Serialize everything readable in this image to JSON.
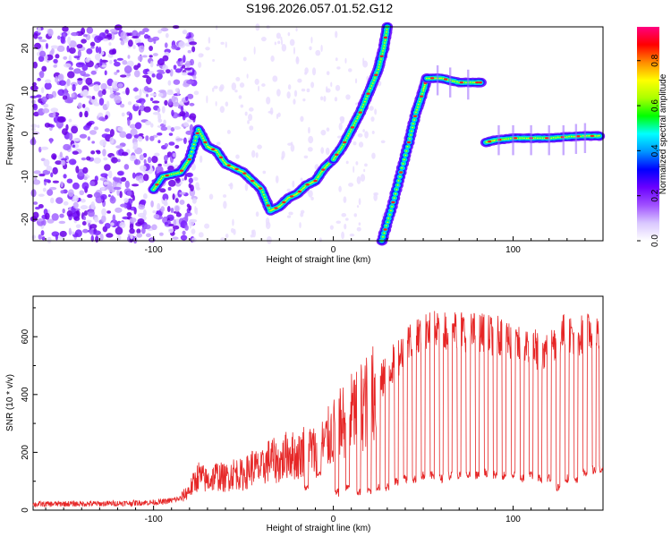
{
  "title": "S196.2026.057.01.52.G12",
  "colors": {
    "snr_line": "#e62626",
    "axis": "#000000",
    "colorbar": [
      "#ffffff",
      "#d9c7ff",
      "#a050ff",
      "#6a00ff",
      "#0000ff",
      "#0096ff",
      "#00ffff",
      "#00ff00",
      "#aaff00",
      "#ffff00",
      "#ff8c00",
      "#ff0000",
      "#ff0080"
    ]
  },
  "chart_data": [
    {
      "type": "heatmap",
      "xlabel": "Height of straight line (km)",
      "ylabel": "Frequency (Hz)",
      "xlim": [
        -167,
        150
      ],
      "ylim": [
        -25,
        25
      ],
      "xticks": [
        "-100",
        "0",
        "100"
      ],
      "yticks": [
        "-20",
        "-10",
        "0",
        "10",
        "20"
      ],
      "colorbar": {
        "label": "Normalized spectral amplitude",
        "range": [
          0,
          0.95
        ],
        "ticks": [
          "0.0",
          "0.2",
          "0.4",
          "0.6",
          "0.8"
        ]
      },
      "tracks": [
        {
          "segment": "noisy track",
          "points": [
            [
              -100,
              -13
            ],
            [
              -95,
              -10
            ],
            [
              -85,
              -9
            ],
            [
              -80,
              -6
            ],
            [
              -75,
              1
            ],
            [
              -70,
              -3
            ],
            [
              -65,
              -4
            ],
            [
              -60,
              -7
            ],
            [
              -55,
              -8
            ],
            [
              -50,
              -9
            ],
            [
              -45,
              -11
            ],
            [
              -40,
              -13
            ],
            [
              -35,
              -18
            ],
            [
              -30,
              -17
            ],
            [
              -25,
              -15
            ],
            [
              -20,
              -14
            ],
            [
              -15,
              -12
            ],
            [
              -10,
              -11
            ],
            [
              -5,
              -8
            ],
            [
              0,
              -6
            ]
          ]
        },
        {
          "segment": "rising ridge 1",
          "points": [
            [
              0,
              -6
            ],
            [
              5,
              -3
            ],
            [
              10,
              1
            ],
            [
              15,
              5
            ],
            [
              20,
              10
            ],
            [
              25,
              15
            ],
            [
              28,
              20
            ],
            [
              30,
              25
            ]
          ]
        },
        {
          "segment": "rising ridge 2",
          "points": [
            [
              27,
              -25
            ],
            [
              32,
              -18
            ],
            [
              37,
              -10
            ],
            [
              42,
              -2
            ],
            [
              46,
              5
            ],
            [
              50,
              10
            ],
            [
              52,
              13
            ]
          ]
        },
        {
          "segment": "plateau",
          "points": [
            [
              52,
              13
            ],
            [
              60,
              13
            ],
            [
              70,
              12
            ],
            [
              80,
              12
            ],
            [
              82,
              12
            ]
          ]
        },
        {
          "segment": "low branch",
          "points": [
            [
              85,
              -2
            ],
            [
              90,
              -1.5
            ],
            [
              100,
              -1
            ],
            [
              110,
              -1
            ],
            [
              120,
              -1
            ],
            [
              130,
              -0.7
            ],
            [
              140,
              -0.5
            ],
            [
              148,
              -0.5
            ]
          ]
        }
      ]
    },
    {
      "type": "line",
      "xlabel": "Height of straight line (km)",
      "ylabel": "SNR (10 * v/v)",
      "xlim": [
        -167,
        150
      ],
      "ylim": [
        0,
        740
      ],
      "xticks": [
        "-100",
        "0",
        "100"
      ],
      "yticks": [
        "0",
        "200",
        "400",
        "600"
      ],
      "series": [
        {
          "values": [
            [
              -167,
              20
            ],
            [
              -150,
              22
            ],
            [
              -130,
              22
            ],
            [
              -110,
              25
            ],
            [
              -95,
              28
            ],
            [
              -85,
              40
            ],
            [
              -80,
              70
            ],
            [
              -75,
              120
            ],
            [
              -70,
              100
            ],
            [
              -65,
              120
            ],
            [
              -60,
              110
            ],
            [
              -55,
              130
            ],
            [
              -50,
              120
            ],
            [
              -45,
              150
            ],
            [
              -40,
              140
            ],
            [
              -35,
              180
            ],
            [
              -30,
              160
            ],
            [
              -25,
              200
            ],
            [
              -20,
              180
            ],
            [
              -15,
              220
            ],
            [
              -10,
              200
            ],
            [
              -5,
              230
            ],
            [
              0,
              270
            ],
            [
              5,
              300
            ],
            [
              10,
              330
            ],
            [
              15,
              360
            ],
            [
              20,
              380
            ],
            [
              25,
              420
            ],
            [
              30,
              480
            ],
            [
              35,
              520
            ],
            [
              40,
              570
            ],
            [
              45,
              600
            ],
            [
              50,
              610
            ],
            [
              55,
              620
            ],
            [
              60,
              630
            ],
            [
              65,
              620
            ],
            [
              70,
              630
            ],
            [
              75,
              610
            ],
            [
              80,
              620
            ],
            [
              85,
              610
            ],
            [
              90,
              600
            ],
            [
              95,
              610
            ],
            [
              100,
              580
            ],
            [
              105,
              560
            ],
            [
              110,
              580
            ],
            [
              115,
              540
            ],
            [
              120,
              560
            ],
            [
              125,
              600
            ],
            [
              130,
              620
            ],
            [
              135,
              600
            ],
            [
              140,
              610
            ],
            [
              145,
              620
            ],
            [
              150,
              600
            ]
          ],
          "dips": [
            [
              -15,
              80
            ],
            [
              -8,
              120
            ],
            [
              2,
              60
            ],
            [
              8,
              80
            ],
            [
              14,
              60
            ],
            [
              20,
              70
            ],
            [
              25,
              80
            ],
            [
              30,
              80
            ],
            [
              35,
              100
            ],
            [
              40,
              110
            ],
            [
              45,
              110
            ],
            [
              50,
              120
            ],
            [
              55,
              120
            ],
            [
              60,
              110
            ],
            [
              65,
              120
            ],
            [
              70,
              120
            ],
            [
              75,
              120
            ],
            [
              80,
              120
            ],
            [
              85,
              130
            ],
            [
              90,
              120
            ],
            [
              95,
              120
            ],
            [
              100,
              120
            ],
            [
              105,
              110
            ],
            [
              110,
              120
            ],
            [
              115,
              110
            ],
            [
              120,
              110
            ],
            [
              125,
              80
            ],
            [
              130,
              110
            ],
            [
              135,
              100
            ],
            [
              140,
              130
            ],
            [
              145,
              140
            ],
            [
              149,
              140
            ]
          ]
        }
      ]
    }
  ]
}
